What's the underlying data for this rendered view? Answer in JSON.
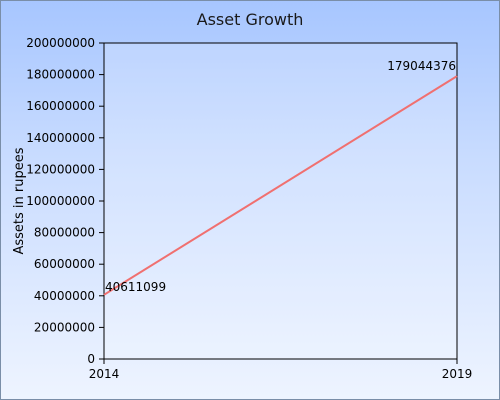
{
  "chart_data": {
    "type": "line",
    "title": "Asset Growth",
    "xlabel": "",
    "ylabel": "Assets in rupees",
    "x": [
      "2014",
      "2019"
    ],
    "series": [
      {
        "values": [
          40611099,
          179044376
        ],
        "color": "#f07070"
      }
    ],
    "data_labels": [
      "40611099",
      "179044376"
    ],
    "ylim": [
      0,
      200000000
    ],
    "yticks": [
      "0",
      "20000000",
      "40000000",
      "60000000",
      "80000000",
      "100000000",
      "120000000",
      "140000000",
      "160000000",
      "180000000",
      "200000000"
    ],
    "grid": false,
    "legend": "none"
  }
}
